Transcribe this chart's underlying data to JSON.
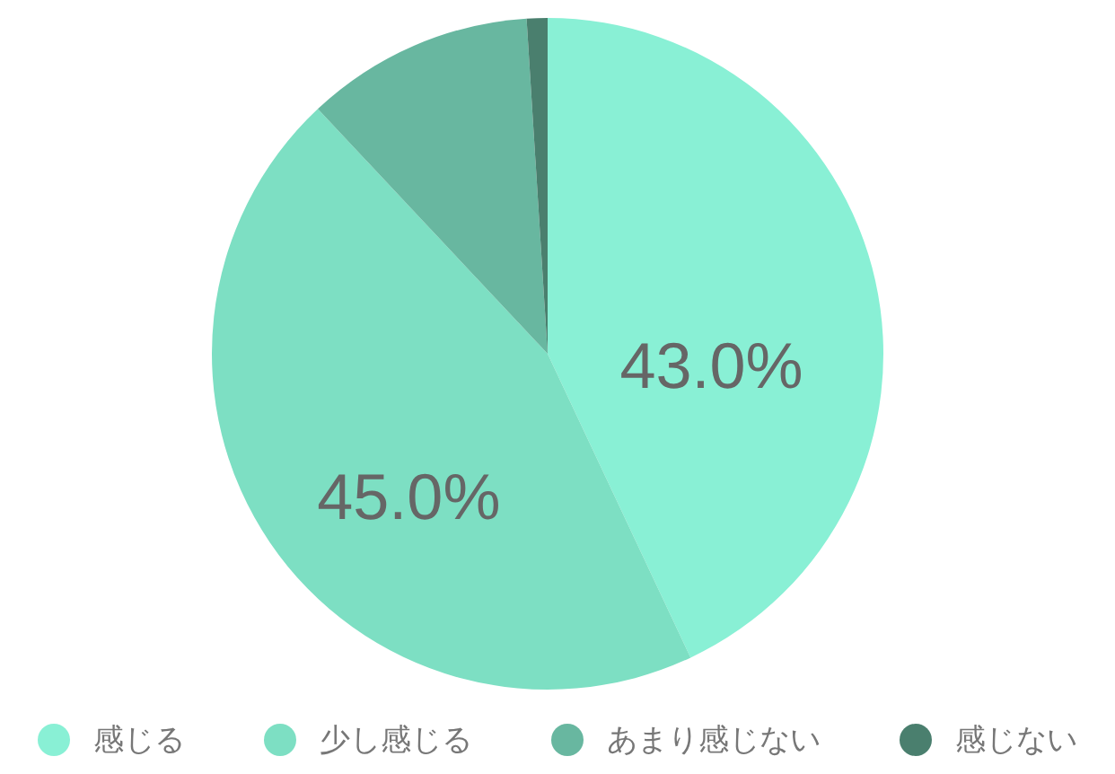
{
  "chart_data": {
    "type": "pie",
    "categories": [
      "感じる",
      "少し感じる",
      "あまり感じない",
      "感じない"
    ],
    "values": [
      43,
      45,
      11,
      1
    ],
    "colors": [
      "#89f0d5",
      "#7ddfc3",
      "#68b7a0",
      "#4a7f6e"
    ],
    "value_labels": [
      "43.0%",
      "45.0%",
      null,
      null
    ],
    "legend": "bottom"
  }
}
